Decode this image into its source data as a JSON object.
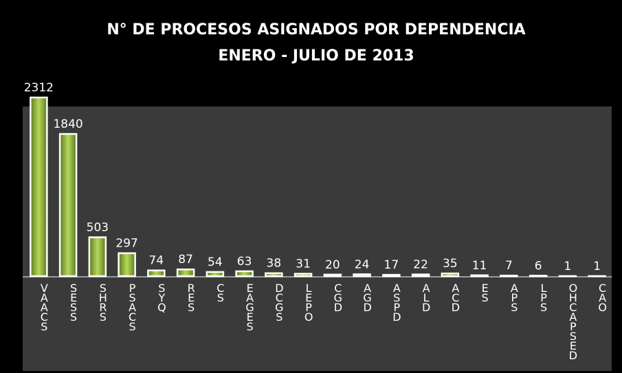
{
  "chart_data": {
    "type": "bar",
    "title": "N° DE PROCESOS ASIGNADOS POR DEPENDENCIA",
    "subtitle": "ENERO - JULIO DE 2013",
    "categories": [
      "VAACS",
      "SESS",
      "SHRS",
      "PSACS",
      "SYQ",
      "RES",
      "CS",
      "EAGES",
      "DCGS",
      "LEPO",
      "CGD",
      "AGD",
      "ASPD",
      "ALD",
      "ACD",
      "ES",
      "APS",
      "LPS",
      "OHCAPSED",
      "CAO"
    ],
    "values": [
      2312,
      1840,
      503,
      297,
      74,
      87,
      54,
      63,
      38,
      31,
      20,
      24,
      17,
      22,
      35,
      11,
      7,
      6,
      1,
      1
    ],
    "color": "#8db33a",
    "ylim": [
      0,
      2400
    ]
  }
}
